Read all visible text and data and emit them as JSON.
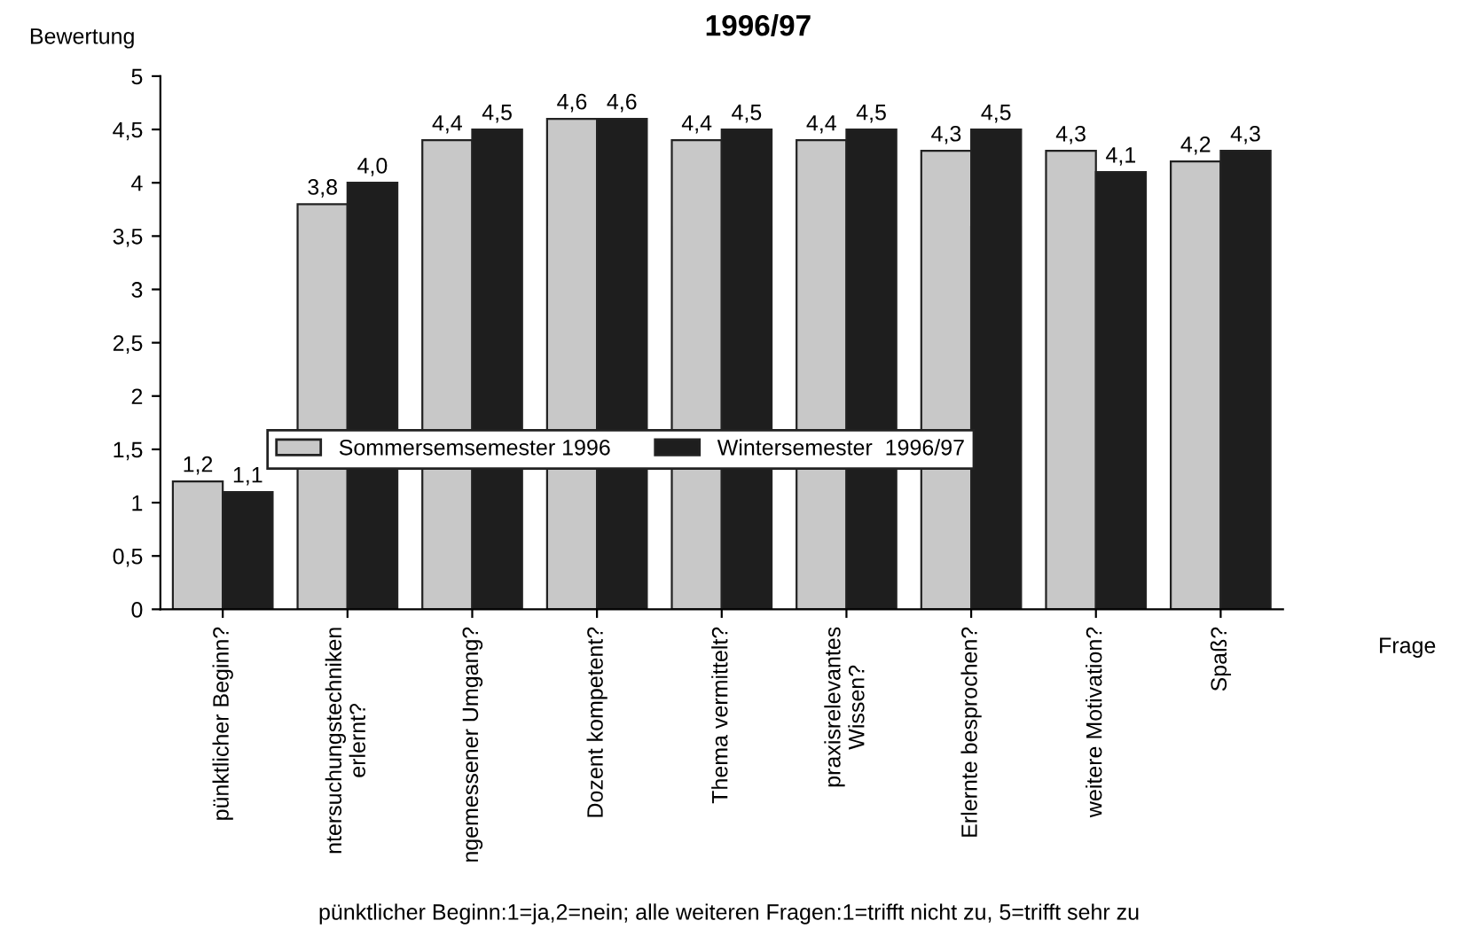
{
  "chart_data": {
    "type": "bar",
    "title": "1996/97",
    "ylabel": "Bewertung",
    "xlabel": "Frage",
    "categories": [
      "pünktlicher Beginn?",
      "ntersuchungstechniken\nerlernt?",
      "ngemessener Umgang?",
      "Dozent kompetent?",
      "Thema vermittelt?",
      "praxisrelevantes\nWissen?",
      "Erlernte besprochen?",
      "weitere Motivation?",
      "Spaß?"
    ],
    "series": [
      {
        "name": "Sommersemsemester 1996",
        "color": "#c8c8c8",
        "values": [
          1.2,
          3.8,
          4.4,
          4.6,
          4.4,
          4.4,
          4.3,
          4.3,
          4.2
        ],
        "value_labels": [
          "1,2",
          "3,8",
          "4,4",
          "4,6",
          "4,4",
          "4,4",
          "4,3",
          "4,3",
          "4,2"
        ]
      },
      {
        "name": "Wintersemester  1996/97",
        "color": "#1e1e1e",
        "values": [
          1.1,
          4.0,
          4.5,
          4.6,
          4.5,
          4.5,
          4.5,
          4.1,
          4.3
        ],
        "value_labels": [
          "1,1",
          "4,0",
          "4,5",
          "4,6",
          "4,5",
          "4,5",
          "4,5",
          "4,1",
          "4,3"
        ]
      }
    ],
    "ylim": [
      0,
      5
    ],
    "yticks": [
      0,
      {
        "value": 0.5,
        "label": "0,5"
      },
      1,
      {
        "value": 1.5,
        "label": "1,5"
      },
      2,
      {
        "value": 2.5,
        "label": "2,5"
      },
      3,
      {
        "value": 3.5,
        "label": "3,5"
      },
      4,
      {
        "value": 4.5,
        "label": "4,5"
      },
      5
    ],
    "grid": false,
    "legend": "center",
    "annotations": [
      "pünktlicher Beginn:1=ja,2=nein; alle weiteren Fragen:1=trifft nicht zu, 5=trifft sehr zu"
    ]
  }
}
